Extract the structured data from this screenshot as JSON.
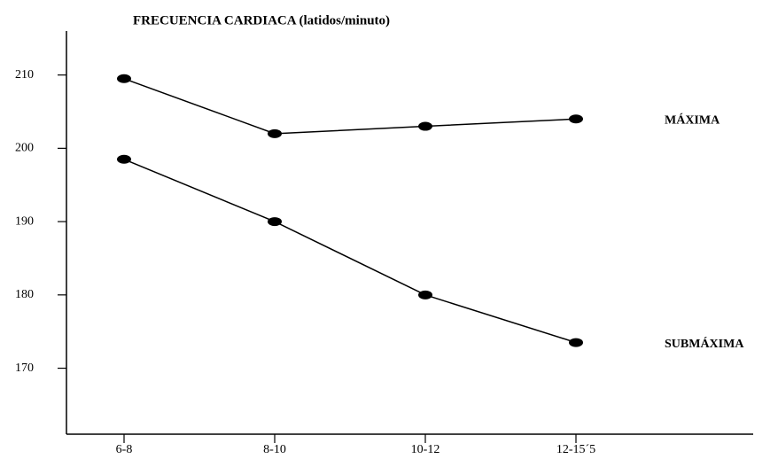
{
  "chart_data": {
    "type": "line",
    "title": "FRECUENCIA CARDIACA (latidos/minuto)",
    "categories": [
      "6-8",
      "8-10",
      "10-12",
      "12-15´5"
    ],
    "series": [
      {
        "name": "MÁXIMA",
        "color": "#000000",
        "values": [
          209.5,
          202,
          203,
          204
        ]
      },
      {
        "name": "SUBMÁXIMA",
        "color": "#000000",
        "values": [
          198.5,
          190,
          180,
          173.5
        ]
      }
    ],
    "ylim": [
      161,
      216
    ],
    "yticks": [
      170,
      180,
      190,
      200,
      210
    ],
    "grid": false
  }
}
